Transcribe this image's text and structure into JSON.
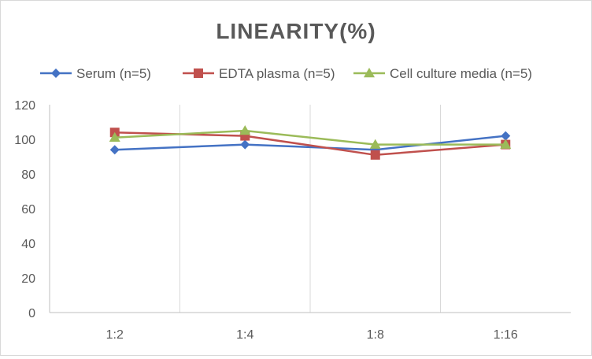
{
  "chart_data": {
    "type": "line",
    "title": "LINEARITY(%)",
    "xlabel": "",
    "ylabel": "",
    "categories": [
      "1:2",
      "1:4",
      "1:8",
      "1:16"
    ],
    "ylim": [
      0,
      120
    ],
    "yticks": [
      0,
      20,
      40,
      60,
      80,
      100,
      120
    ],
    "grid": "vertical",
    "legend_position": "top",
    "series": [
      {
        "name": "Serum (n=5)",
        "values": [
          94,
          97,
          94,
          102
        ],
        "color": "#4472c4",
        "marker": "diamond"
      },
      {
        "name": "EDTA plasma (n=5)",
        "values": [
          104,
          102,
          91,
          97
        ],
        "color": "#c0504d",
        "marker": "square"
      },
      {
        "name": "Cell culture media (n=5)",
        "values": [
          101,
          105,
          97,
          97
        ],
        "color": "#9bbb59",
        "marker": "triangle"
      }
    ]
  }
}
